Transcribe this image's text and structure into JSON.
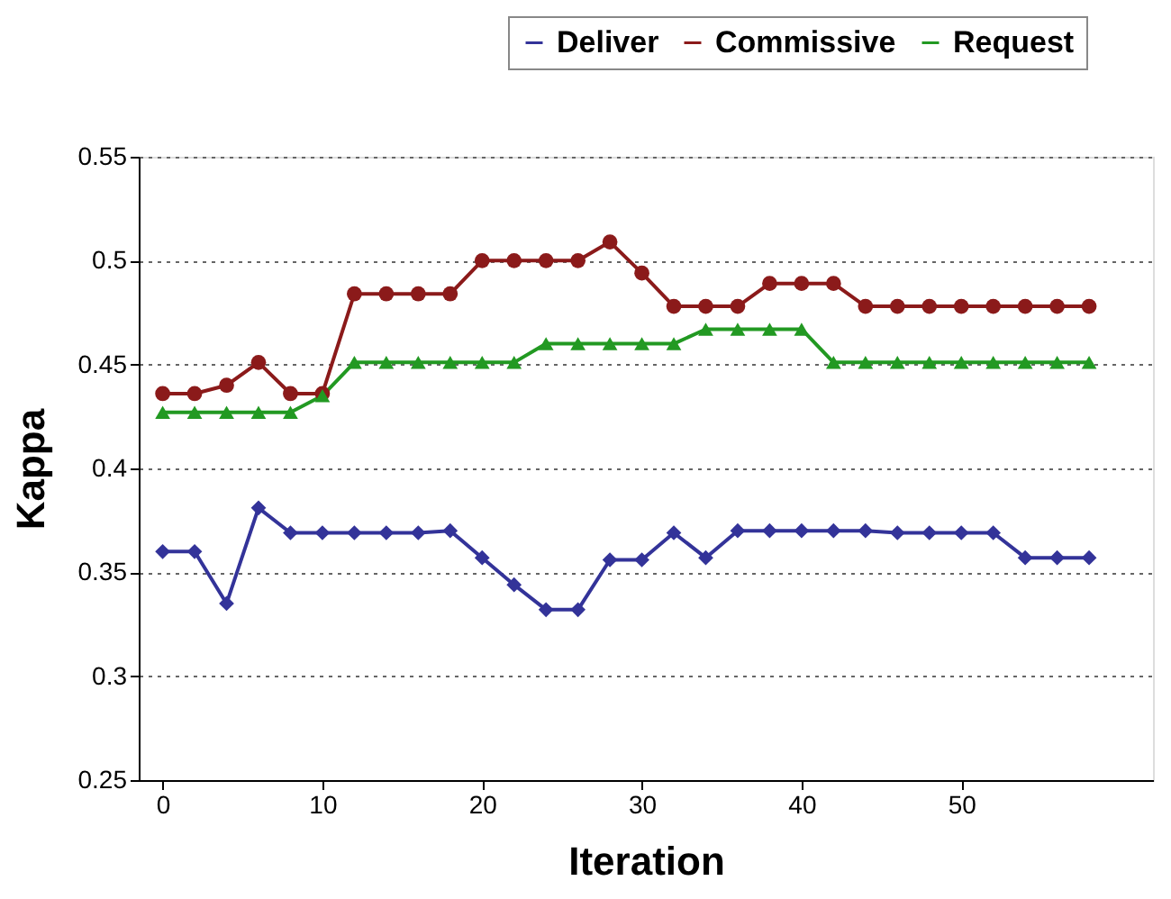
{
  "chart_data": {
    "type": "line",
    "xlabel": "Iteration",
    "ylabel": "Kappa",
    "x": [
      0,
      2,
      4,
      6,
      8,
      10,
      12,
      14,
      16,
      18,
      20,
      22,
      24,
      26,
      28,
      30,
      32,
      34,
      36,
      38,
      40,
      42,
      44,
      46,
      48,
      50,
      52,
      54,
      56,
      58
    ],
    "series": [
      {
        "name": "Deliver",
        "color": "#333399",
        "marker": "diamond",
        "values": [
          0.36,
          0.36,
          0.335,
          0.381,
          0.369,
          0.369,
          0.369,
          0.369,
          0.369,
          0.37,
          0.357,
          0.344,
          0.332,
          0.332,
          0.356,
          0.356,
          0.369,
          0.357,
          0.37,
          0.37,
          0.37,
          0.37,
          0.37,
          0.369,
          0.369,
          0.369,
          0.369,
          0.357,
          0.357,
          0.357
        ]
      },
      {
        "name": "Commissive",
        "color": "#8b1a1a",
        "marker": "circle",
        "values": [
          0.436,
          0.436,
          0.44,
          0.451,
          0.436,
          0.436,
          0.484,
          0.484,
          0.484,
          0.484,
          0.5,
          0.5,
          0.5,
          0.5,
          0.509,
          0.494,
          0.478,
          0.478,
          0.478,
          0.489,
          0.489,
          0.489,
          0.478,
          0.478,
          0.478,
          0.478,
          0.478,
          0.478,
          0.478,
          0.478
        ]
      },
      {
        "name": "Request",
        "color": "#229922",
        "marker": "triangle",
        "values": [
          0.427,
          0.427,
          0.427,
          0.427,
          0.427,
          0.435,
          0.451,
          0.451,
          0.451,
          0.451,
          0.451,
          0.451,
          0.46,
          0.46,
          0.46,
          0.46,
          0.46,
          0.467,
          0.467,
          0.467,
          0.467,
          0.451,
          0.451,
          0.451,
          0.451,
          0.451,
          0.451,
          0.451,
          0.451,
          0.451
        ]
      }
    ],
    "xlim": [
      -1.5,
      62
    ],
    "xticks": [
      0,
      10,
      20,
      30,
      40,
      50
    ],
    "ylim": [
      0.25,
      0.55
    ],
    "yticks": [
      0.25,
      0.3,
      0.35,
      0.4,
      0.45,
      0.5,
      0.55
    ],
    "grid": "y",
    "legend": "top right",
    "line_style": "solid"
  }
}
